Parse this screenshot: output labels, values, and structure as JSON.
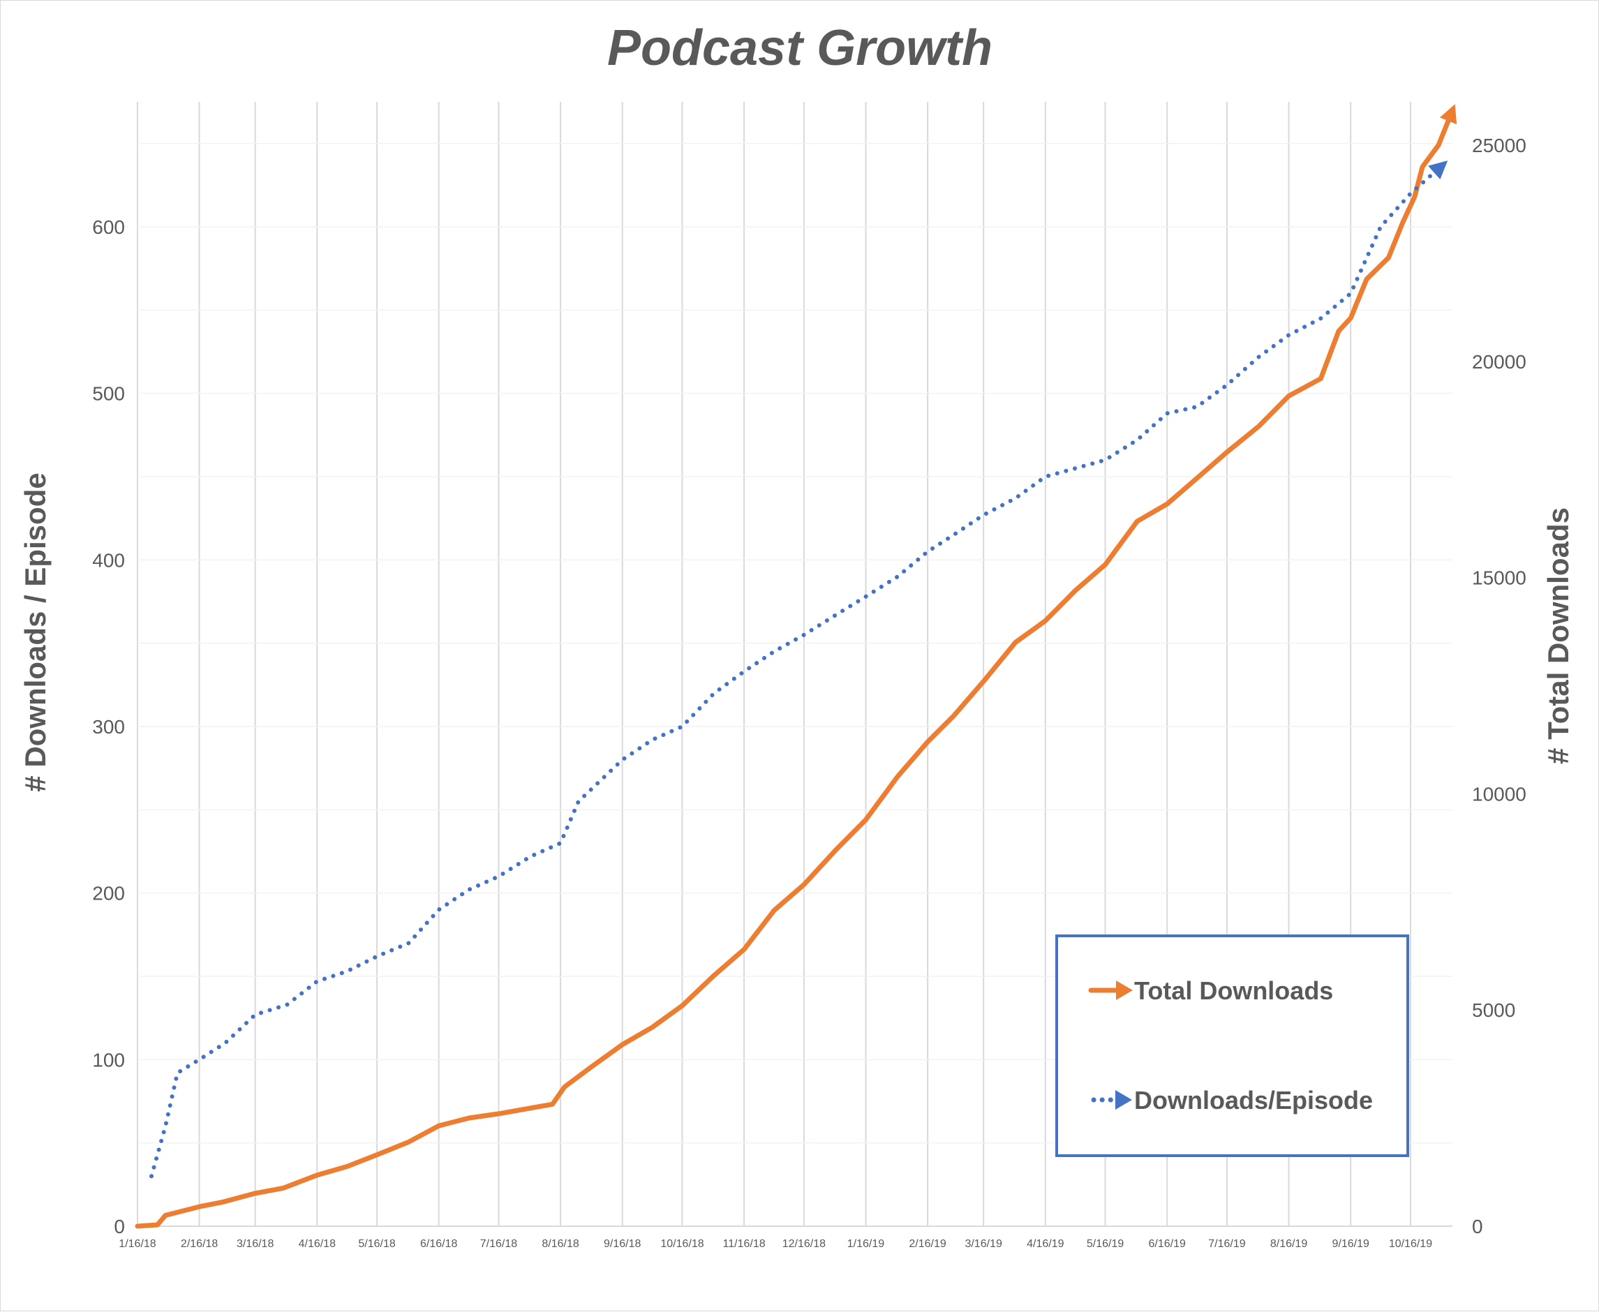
{
  "chart_data": {
    "type": "line",
    "title": "Podcast Growth",
    "ylabel_left": "# Downloads / Episode",
    "ylabel_right": "# Total Downloads",
    "x_ticks": [
      "1/16/18",
      "2/16/18",
      "3/16/18",
      "4/16/18",
      "5/16/18",
      "6/16/18",
      "7/16/18",
      "8/16/18",
      "9/16/18",
      "10/16/18",
      "11/16/18",
      "12/16/18",
      "1/16/19",
      "2/16/19",
      "3/16/19",
      "4/16/19",
      "5/16/19",
      "6/16/19",
      "7/16/19",
      "8/16/19",
      "9/16/19",
      "10/16/19"
    ],
    "x_range": [
      "2018-01-16",
      "2019-11-06"
    ],
    "ylim_left": [
      0,
      675
    ],
    "yticks_left": [
      "0",
      "100",
      "200",
      "300",
      "400",
      "500",
      "600"
    ],
    "ylim_right": [
      0,
      26000
    ],
    "yticks_right": [
      "0",
      "5000",
      "10000",
      "15000",
      "20000",
      "25000"
    ],
    "grid": "vertical",
    "legend": {
      "position": "bottom-right"
    },
    "series": [
      {
        "name": "Total Downloads",
        "axis": "right",
        "color": "#ED7D31",
        "style": "solid",
        "points": [
          [
            "2018-01-16",
            0
          ],
          [
            "2018-01-26",
            30
          ],
          [
            "2018-01-30",
            250
          ],
          [
            "2018-02-10",
            380
          ],
          [
            "2018-02-16",
            450
          ],
          [
            "2018-02-28",
            560
          ],
          [
            "2018-03-16",
            760
          ],
          [
            "2018-03-30",
            880
          ],
          [
            "2018-04-16",
            1180
          ],
          [
            "2018-05-01",
            1380
          ],
          [
            "2018-05-16",
            1650
          ],
          [
            "2018-06-01",
            1950
          ],
          [
            "2018-06-16",
            2320
          ],
          [
            "2018-07-01",
            2500
          ],
          [
            "2018-07-16",
            2600
          ],
          [
            "2018-08-01",
            2730
          ],
          [
            "2018-08-12",
            2820
          ],
          [
            "2018-08-18",
            3220
          ],
          [
            "2018-09-01",
            3700
          ],
          [
            "2018-09-16",
            4200
          ],
          [
            "2018-10-01",
            4600
          ],
          [
            "2018-10-16",
            5100
          ],
          [
            "2018-11-01",
            5800
          ],
          [
            "2018-11-16",
            6400
          ],
          [
            "2018-12-01",
            7300
          ],
          [
            "2018-12-16",
            7900
          ],
          [
            "2019-01-01",
            8700
          ],
          [
            "2019-01-16",
            9400
          ],
          [
            "2019-02-01",
            10400
          ],
          [
            "2019-02-16",
            11200
          ],
          [
            "2019-03-01",
            11800
          ],
          [
            "2019-03-16",
            12600
          ],
          [
            "2019-04-01",
            13500
          ],
          [
            "2019-04-16",
            14000
          ],
          [
            "2019-05-01",
            14700
          ],
          [
            "2019-05-16",
            15300
          ],
          [
            "2019-06-01",
            16300
          ],
          [
            "2019-06-16",
            16700
          ],
          [
            "2019-07-01",
            17300
          ],
          [
            "2019-07-16",
            17900
          ],
          [
            "2019-08-01",
            18500
          ],
          [
            "2019-08-16",
            19200
          ],
          [
            "2019-09-01",
            19600
          ],
          [
            "2019-09-10",
            20700
          ],
          [
            "2019-09-16",
            21000
          ],
          [
            "2019-09-24",
            21900
          ],
          [
            "2019-10-05",
            22400
          ],
          [
            "2019-10-12",
            23200
          ],
          [
            "2019-10-18",
            23800
          ],
          [
            "2019-10-22",
            24500
          ],
          [
            "2019-10-30",
            25000
          ],
          [
            "2019-11-06",
            25800
          ]
        ]
      },
      {
        "name": "Downloads/Episode",
        "axis": "left",
        "color": "#4472C4",
        "style": "dotted",
        "points": [
          [
            "2018-01-23",
            30
          ],
          [
            "2018-01-30",
            60
          ],
          [
            "2018-02-05",
            92
          ],
          [
            "2018-02-16",
            100
          ],
          [
            "2018-03-01",
            110
          ],
          [
            "2018-03-16",
            127
          ],
          [
            "2018-04-01",
            133
          ],
          [
            "2018-04-16",
            147
          ],
          [
            "2018-05-01",
            153
          ],
          [
            "2018-05-16",
            162
          ],
          [
            "2018-06-01",
            170
          ],
          [
            "2018-06-16",
            190
          ],
          [
            "2018-07-01",
            202
          ],
          [
            "2018-07-16",
            210
          ],
          [
            "2018-08-01",
            222
          ],
          [
            "2018-08-16",
            230
          ],
          [
            "2018-08-25",
            255
          ],
          [
            "2018-09-16",
            280
          ],
          [
            "2018-10-01",
            292
          ],
          [
            "2018-10-16",
            300
          ],
          [
            "2018-11-01",
            320
          ],
          [
            "2018-11-16",
            333
          ],
          [
            "2018-12-01",
            345
          ],
          [
            "2018-12-16",
            355
          ],
          [
            "2019-01-01",
            367
          ],
          [
            "2019-01-16",
            378
          ],
          [
            "2019-02-01",
            390
          ],
          [
            "2019-02-16",
            405
          ],
          [
            "2019-03-01",
            415
          ],
          [
            "2019-03-16",
            427
          ],
          [
            "2019-04-01",
            437
          ],
          [
            "2019-04-16",
            450
          ],
          [
            "2019-05-01",
            455
          ],
          [
            "2019-05-16",
            460
          ],
          [
            "2019-06-01",
            472
          ],
          [
            "2019-06-16",
            488
          ],
          [
            "2019-07-01",
            492
          ],
          [
            "2019-07-16",
            505
          ],
          [
            "2019-08-01",
            522
          ],
          [
            "2019-08-16",
            535
          ],
          [
            "2019-09-01",
            545
          ],
          [
            "2019-09-16",
            560
          ],
          [
            "2019-10-01",
            600
          ],
          [
            "2019-10-16",
            620
          ],
          [
            "2019-11-01",
            637
          ]
        ]
      }
    ]
  }
}
